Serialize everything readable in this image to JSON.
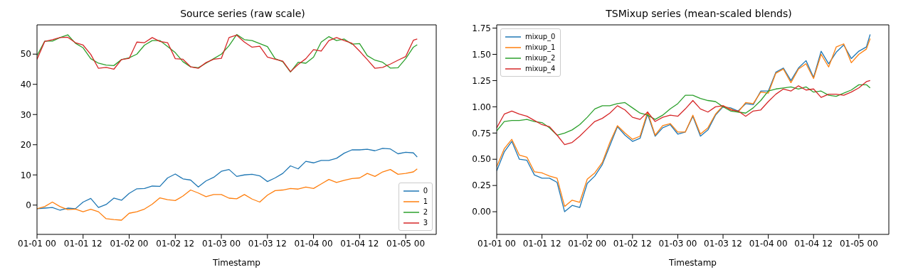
{
  "chart_data": [
    {
      "type": "line",
      "title": "Source series (raw scale)",
      "xlabel": "Timestamp",
      "x": [
        "--01-01T00:00",
        "--01-01T02:00",
        "--01-01T04:00",
        "--01-01T06:00",
        "--01-01T08:00",
        "--01-01T10:00",
        "--01-01T12:00",
        "--01-01T14:00",
        "--01-01T16:00",
        "--01-01T18:00",
        "--01-01T20:00",
        "--01-01T22:00",
        "--01-02T00:00",
        "--01-02T02:00",
        "--01-02T04:00",
        "--01-02T06:00",
        "--01-02T08:00",
        "--01-02T10:00",
        "--01-02T12:00",
        "--01-02T14:00",
        "--01-02T16:00",
        "--01-02T18:00",
        "--01-02T20:00",
        "--01-02T22:00",
        "--01-03T00:00",
        "--01-03T02:00",
        "--01-03T04:00",
        "--01-03T06:00",
        "--01-03T08:00",
        "--01-03T10:00",
        "--01-03T12:00",
        "--01-03T14:00",
        "--01-03T16:00",
        "--01-03T18:00",
        "--01-03T20:00",
        "--01-03T22:00",
        "--01-04T00:00",
        "--01-04T02:00",
        "--01-04T04:00",
        "--01-04T06:00",
        "--01-04T08:00",
        "--01-04T10:00",
        "--01-04T12:00",
        "--01-04T14:00",
        "--01-04T16:00",
        "--01-04T18:00",
        "--01-04T20:00",
        "--01-04T22:00",
        "--01-05T00:00",
        "--01-05T02:00",
        "--01-05T03:00"
      ],
      "series": [
        {
          "name": "0",
          "color": "#1f77b4",
          "values": [
            -1.2,
            -1.0,
            -0.8,
            -1.7,
            -1.0,
            -1.2,
            1.0,
            2.2,
            -0.8,
            0.2,
            2.3,
            1.6,
            3.9,
            5.4,
            5.5,
            6.3,
            6.2,
            9.0,
            10.3,
            8.7,
            8.3,
            6.0,
            8.0,
            9.2,
            11.2,
            11.8,
            9.5,
            10.0,
            10.2,
            9.7,
            7.8,
            9.0,
            10.5,
            13.0,
            12.0,
            14.5,
            14.0,
            14.8,
            14.8,
            15.5,
            17.2,
            18.3,
            18.3,
            18.5,
            18.0,
            18.8,
            18.6,
            17.0,
            17.5,
            17.3,
            15.9
          ]
        },
        {
          "name": "1",
          "color": "#ff7f0e",
          "values": [
            -1.2,
            -0.5,
            1.0,
            -0.5,
            -1.5,
            -1.3,
            -2.2,
            -1.4,
            -2.2,
            -4.5,
            -4.8,
            -5.0,
            -2.7,
            -2.2,
            -1.3,
            0.3,
            2.4,
            1.8,
            1.5,
            3.0,
            5.0,
            4.0,
            2.8,
            3.5,
            3.5,
            2.3,
            2.1,
            3.5,
            2.0,
            1.0,
            3.3,
            4.8,
            5.0,
            5.5,
            5.3,
            6.0,
            5.5,
            7.0,
            8.5,
            7.5,
            8.2,
            8.8,
            9.0,
            10.5,
            9.5,
            11.0,
            11.8,
            10.2,
            10.5,
            11.0,
            12.0
          ]
        },
        {
          "name": "2",
          "color": "#2ca02c",
          "values": [
            49.5,
            54.3,
            54.3,
            55.5,
            56.4,
            53.6,
            52.1,
            48.5,
            47.0,
            46.4,
            46.2,
            48.2,
            48.8,
            50.0,
            53.0,
            54.5,
            54.5,
            52.5,
            50.5,
            47.5,
            45.8,
            45.5,
            47.0,
            48.5,
            50.0,
            52.8,
            56.5,
            54.8,
            54.5,
            53.5,
            52.5,
            48.5,
            47.5,
            44.1,
            47.3,
            47.0,
            49.0,
            54.0,
            55.8,
            54.5,
            55.0,
            53.3,
            53.5,
            49.5,
            48.0,
            47.3,
            45.4,
            45.5,
            48.5,
            52.3,
            53.1
          ]
        },
        {
          "name": "3",
          "color": "#d62728",
          "values": [
            48.3,
            54.2,
            54.8,
            55.5,
            55.6,
            53.8,
            53.0,
            49.9,
            45.3,
            45.6,
            45.0,
            48.2,
            48.6,
            54.0,
            53.8,
            55.5,
            54.2,
            53.8,
            48.5,
            48.3,
            45.8,
            45.3,
            47.2,
            48.3,
            48.6,
            55.5,
            56.3,
            54.0,
            52.3,
            52.6,
            49.0,
            48.3,
            47.7,
            44.2,
            46.6,
            48.5,
            51.5,
            51.0,
            54.5,
            55.5,
            54.5,
            53.6,
            51.0,
            48.2,
            45.3,
            45.6,
            46.7,
            48.0,
            49.2,
            54.6,
            55.0
          ]
        }
      ],
      "xlim": [
        "--01-01T00:00",
        "--01-05T07:57"
      ],
      "xticks": [
        {
          "value": "--01-01T00:00",
          "label": "01-01 00"
        },
        {
          "value": "--01-01T12:00",
          "label": "01-01 12"
        },
        {
          "value": "--01-02T00:00",
          "label": "01-02 00"
        },
        {
          "value": "--01-02T12:00",
          "label": "01-02 12"
        },
        {
          "value": "--01-03T00:00",
          "label": "01-03 00"
        },
        {
          "value": "--01-03T12:00",
          "label": "01-03 12"
        },
        {
          "value": "--01-04T00:00",
          "label": "01-04 00"
        },
        {
          "value": "--01-04T12:00",
          "label": "01-04 12"
        },
        {
          "value": "--01-05T00:00",
          "label": "01-05 00"
        }
      ],
      "ylim": [
        -9.7,
        59.7
      ],
      "yticks": [
        0,
        10,
        20,
        30,
        40,
        50
      ],
      "grid": false,
      "legend": "bottom right"
    },
    {
      "type": "line",
      "title": "TSMixup series (mean-scaled blends)",
      "xlabel": "Timestamp",
      "x": [
        "--01-01T00:00",
        "--01-01T02:00",
        "--01-01T04:00",
        "--01-01T06:00",
        "--01-01T08:00",
        "--01-01T10:00",
        "--01-01T12:00",
        "--01-01T14:00",
        "--01-01T16:00",
        "--01-01T18:00",
        "--01-01T20:00",
        "--01-01T22:00",
        "--01-02T00:00",
        "--01-02T02:00",
        "--01-02T04:00",
        "--01-02T06:00",
        "--01-02T08:00",
        "--01-02T10:00",
        "--01-02T12:00",
        "--01-02T14:00",
        "--01-02T16:00",
        "--01-02T18:00",
        "--01-02T20:00",
        "--01-02T22:00",
        "--01-03T00:00",
        "--01-03T02:00",
        "--01-03T04:00",
        "--01-03T06:00",
        "--01-03T08:00",
        "--01-03T10:00",
        "--01-03T12:00",
        "--01-03T14:00",
        "--01-03T16:00",
        "--01-03T18:00",
        "--01-03T20:00",
        "--01-03T22:00",
        "--01-04T00:00",
        "--01-04T02:00",
        "--01-04T04:00",
        "--01-04T06:00",
        "--01-04T08:00",
        "--01-04T10:00",
        "--01-04T12:00",
        "--01-04T14:00",
        "--01-04T16:00",
        "--01-04T18:00",
        "--01-04T20:00",
        "--01-04T22:00",
        "--01-05T00:00",
        "--01-05T02:00",
        "--01-05T03:00"
      ],
      "series": [
        {
          "name": "mixup_0",
          "color": "#1f77b4",
          "values": [
            0.39,
            0.57,
            0.67,
            0.5,
            0.49,
            0.35,
            0.32,
            0.32,
            0.28,
            0.0,
            0.06,
            0.04,
            0.27,
            0.34,
            0.45,
            0.63,
            0.81,
            0.73,
            0.67,
            0.7,
            0.93,
            0.72,
            0.8,
            0.83,
            0.74,
            0.76,
            0.91,
            0.72,
            0.78,
            0.92,
            1.0,
            0.99,
            0.96,
            1.03,
            1.02,
            1.15,
            1.15,
            1.33,
            1.37,
            1.25,
            1.37,
            1.44,
            1.28,
            1.53,
            1.41,
            1.52,
            1.59,
            1.46,
            1.53,
            1.57,
            1.69
          ]
        },
        {
          "name": "mixup_1",
          "color": "#ff7f0e",
          "values": [
            0.43,
            0.6,
            0.69,
            0.54,
            0.52,
            0.38,
            0.37,
            0.34,
            0.32,
            0.05,
            0.11,
            0.09,
            0.31,
            0.37,
            0.47,
            0.66,
            0.82,
            0.75,
            0.69,
            0.72,
            0.95,
            0.73,
            0.82,
            0.84,
            0.76,
            0.76,
            0.92,
            0.74,
            0.8,
            0.93,
            1.01,
            0.98,
            0.95,
            1.04,
            1.03,
            1.14,
            1.13,
            1.32,
            1.36,
            1.23,
            1.36,
            1.41,
            1.27,
            1.5,
            1.38,
            1.57,
            1.6,
            1.42,
            1.5,
            1.55,
            1.65
          ]
        },
        {
          "name": "mixup_2",
          "color": "#2ca02c",
          "values": [
            0.77,
            0.86,
            0.87,
            0.87,
            0.88,
            0.86,
            0.85,
            0.8,
            0.73,
            0.75,
            0.78,
            0.83,
            0.9,
            0.98,
            1.01,
            1.01,
            1.03,
            1.04,
            0.99,
            0.94,
            0.92,
            0.88,
            0.92,
            0.98,
            1.03,
            1.11,
            1.11,
            1.08,
            1.06,
            1.05,
            1.0,
            0.96,
            0.95,
            0.94,
            0.99,
            1.06,
            1.15,
            1.17,
            1.18,
            1.19,
            1.17,
            1.19,
            1.14,
            1.15,
            1.11,
            1.1,
            1.13,
            1.16,
            1.21,
            1.21,
            1.18
          ]
        },
        {
          "name": "mixup_4",
          "color": "#d62728",
          "values": [
            0.8,
            0.93,
            0.96,
            0.93,
            0.91,
            0.87,
            0.83,
            0.81,
            0.73,
            0.64,
            0.66,
            0.72,
            0.79,
            0.86,
            0.89,
            0.94,
            1.01,
            0.97,
            0.9,
            0.88,
            0.95,
            0.86,
            0.9,
            0.92,
            0.91,
            0.98,
            1.06,
            0.98,
            0.95,
            1.0,
            1.01,
            0.97,
            0.96,
            0.91,
            0.96,
            0.97,
            1.05,
            1.12,
            1.17,
            1.15,
            1.2,
            1.16,
            1.17,
            1.09,
            1.12,
            1.12,
            1.11,
            1.14,
            1.18,
            1.24,
            1.25
          ]
        }
      ],
      "xlim": [
        "--01-01T00:00",
        "--01-05T07:57"
      ],
      "xticks": [
        {
          "value": "--01-01T00:00",
          "label": "01-01 00"
        },
        {
          "value": "--01-01T12:00",
          "label": "01-01 12"
        },
        {
          "value": "--01-02T00:00",
          "label": "01-02 00"
        },
        {
          "value": "--01-02T12:00",
          "label": "01-02 12"
        },
        {
          "value": "--01-03T00:00",
          "label": "01-03 00"
        },
        {
          "value": "--01-03T12:00",
          "label": "01-03 12"
        },
        {
          "value": "--01-04T00:00",
          "label": "01-04 00"
        },
        {
          "value": "--01-04T12:00",
          "label": "01-04 12"
        },
        {
          "value": "--01-05T00:00",
          "label": "01-05 00"
        }
      ],
      "ylim": [
        -0.216,
        1.781
      ],
      "yticks": [
        {
          "value": 0,
          "label": "0.00"
        },
        {
          "value": 0.25,
          "label": "0.25"
        },
        {
          "value": 0.5,
          "label": "0.50"
        },
        {
          "value": 0.75,
          "label": "0.75"
        },
        {
          "value": 1,
          "label": "1.00"
        },
        {
          "value": 1.25,
          "label": "1.25"
        },
        {
          "value": 1.5,
          "label": "1.50"
        },
        {
          "value": 1.75,
          "label": "1.75"
        }
      ],
      "grid": false,
      "legend": "top left"
    }
  ]
}
